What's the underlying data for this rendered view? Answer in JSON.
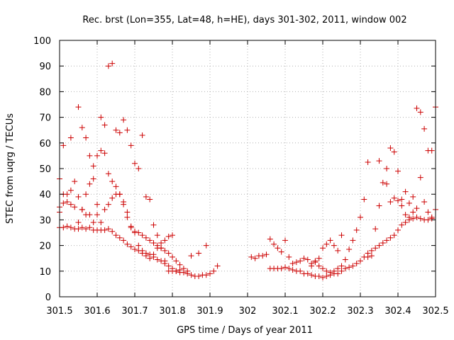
{
  "chart_data": {
    "type": "scatter",
    "title": "Rec. brst (Lon=355, Lat=48, h=HE), days 301-302, 2011, window 002",
    "xlabel": "GPS time / Days of year 2011",
    "ylabel": "STEC from uqrg / TECUs",
    "xlim": [
      301.5,
      302.5
    ],
    "ylim": [
      0,
      100
    ],
    "x_ticks": [
      "301.5",
      "301.6",
      "301.7",
      "301.8",
      "301.9",
      "302",
      "302.1",
      "302.2",
      "302.3",
      "302.4",
      "302.5"
    ],
    "y_ticks": [
      "0",
      "10",
      "20",
      "30",
      "40",
      "50",
      "60",
      "70",
      "80",
      "90",
      "100"
    ],
    "grid": true,
    "marker": "+",
    "colors": {
      "points": "#cc0000",
      "grid": "#b0b0b0",
      "axis": "#000000"
    },
    "series": [
      {
        "points": [
          [
            301.5,
            27
          ],
          [
            301.51,
            27
          ],
          [
            301.52,
            27.5
          ],
          [
            301.53,
            27
          ],
          [
            301.54,
            26.5
          ],
          [
            301.55,
            26.5
          ],
          [
            301.56,
            27
          ],
          [
            301.57,
            26.5
          ],
          [
            301.58,
            27
          ],
          [
            301.59,
            26
          ],
          [
            301.6,
            26
          ],
          [
            301.61,
            26
          ],
          [
            301.62,
            26
          ],
          [
            301.63,
            26.5
          ],
          [
            301.64,
            25.5
          ],
          [
            301.65,
            24
          ],
          [
            301.66,
            23
          ],
          [
            301.67,
            22
          ],
          [
            301.68,
            20.5
          ],
          [
            301.69,
            19.5
          ],
          [
            301.7,
            18.5
          ],
          [
            301.71,
            18
          ],
          [
            301.72,
            17
          ],
          [
            301.73,
            17
          ],
          [
            301.74,
            16.5
          ],
          [
            301.75,
            15.5
          ],
          [
            301.76,
            14.5
          ],
          [
            301.77,
            14
          ],
          [
            301.78,
            13
          ],
          [
            301.79,
            12
          ],
          [
            301.8,
            11
          ],
          [
            301.81,
            10
          ],
          [
            301.82,
            9.5
          ],
          [
            301.83,
            9.5
          ],
          [
            301.84,
            9
          ],
          [
            301.85,
            8.5
          ],
          [
            301.86,
            8
          ],
          [
            301.87,
            8
          ],
          [
            301.88,
            8.5
          ],
          [
            301.89,
            8.5
          ],
          [
            301.9,
            9
          ],
          [
            301.91,
            10
          ],
          [
            301.92,
            12
          ],
          [
            301.5,
            33
          ],
          [
            301.51,
            36.5
          ],
          [
            301.52,
            40
          ],
          [
            301.53,
            41.5
          ],
          [
            301.54,
            45
          ],
          [
            301.55,
            39
          ],
          [
            301.56,
            34
          ],
          [
            301.57,
            32
          ],
          [
            301.58,
            32
          ],
          [
            301.59,
            29
          ],
          [
            301.6,
            32
          ],
          [
            301.61,
            29
          ],
          [
            301.62,
            34
          ],
          [
            301.63,
            36
          ],
          [
            301.64,
            38.5
          ],
          [
            301.65,
            40
          ],
          [
            301.66,
            40
          ],
          [
            301.67,
            37
          ],
          [
            301.68,
            33
          ],
          [
            301.69,
            27.5
          ],
          [
            301.7,
            25.5
          ],
          [
            301.71,
            25
          ],
          [
            301.72,
            24
          ],
          [
            301.73,
            23
          ],
          [
            301.74,
            22
          ],
          [
            301.75,
            21
          ],
          [
            301.76,
            20
          ],
          [
            301.77,
            19
          ],
          [
            301.78,
            18
          ],
          [
            301.79,
            17
          ],
          [
            301.8,
            15.5
          ],
          [
            301.81,
            14
          ],
          [
            301.82,
            12.5
          ],
          [
            301.83,
            11
          ],
          [
            301.84,
            10
          ],
          [
            301.5,
            46
          ],
          [
            301.51,
            40
          ],
          [
            301.52,
            37
          ],
          [
            301.53,
            36
          ],
          [
            301.54,
            35
          ],
          [
            301.55,
            29
          ],
          [
            301.56,
            34
          ],
          [
            301.57,
            40
          ],
          [
            301.58,
            44
          ],
          [
            301.59,
            51
          ],
          [
            301.6,
            55
          ],
          [
            301.61,
            57
          ],
          [
            301.62,
            56
          ],
          [
            301.63,
            48
          ],
          [
            301.64,
            45
          ],
          [
            301.65,
            43
          ],
          [
            301.66,
            40
          ],
          [
            301.67,
            36
          ],
          [
            301.68,
            31
          ],
          [
            301.69,
            27
          ],
          [
            301.7,
            25
          ],
          [
            301.71,
            20
          ],
          [
            301.72,
            18
          ],
          [
            301.73,
            16
          ],
          [
            301.74,
            15
          ],
          [
            301.75,
            16.5
          ],
          [
            301.76,
            19
          ],
          [
            301.77,
            21
          ],
          [
            301.78,
            22
          ],
          [
            301.79,
            23.5
          ],
          [
            301.8,
            24
          ],
          [
            301.85,
            16
          ],
          [
            301.87,
            17
          ],
          [
            301.89,
            20
          ],
          [
            301.5,
            35
          ],
          [
            301.51,
            59
          ],
          [
            301.53,
            62
          ],
          [
            301.55,
            74
          ],
          [
            301.56,
            66
          ],
          [
            301.57,
            62
          ],
          [
            301.58,
            55
          ],
          [
            301.59,
            46
          ],
          [
            301.6,
            36
          ],
          [
            301.61,
            70
          ],
          [
            301.62,
            67
          ],
          [
            301.63,
            90
          ],
          [
            301.64,
            91
          ],
          [
            301.65,
            65
          ],
          [
            301.66,
            64
          ],
          [
            301.67,
            69
          ],
          [
            301.68,
            65
          ],
          [
            301.69,
            59
          ],
          [
            301.7,
            52
          ],
          [
            301.71,
            50
          ],
          [
            301.72,
            63
          ],
          [
            301.73,
            39
          ],
          [
            301.74,
            38
          ],
          [
            301.75,
            28
          ],
          [
            301.76,
            24
          ],
          [
            301.77,
            19
          ],
          [
            301.78,
            14
          ],
          [
            301.79,
            10
          ],
          [
            301.8,
            10
          ],
          [
            301.81,
            10
          ],
          [
            301.82,
            10.5
          ],
          [
            302.01,
            15.5
          ],
          [
            302.02,
            15
          ],
          [
            302.03,
            16
          ],
          [
            302.04,
            16
          ],
          [
            302.05,
            16.5
          ],
          [
            302.06,
            22.5
          ],
          [
            302.07,
            20.5
          ],
          [
            302.08,
            19
          ],
          [
            302.09,
            17.5
          ],
          [
            302.1,
            22
          ],
          [
            302.11,
            15.5
          ],
          [
            302.12,
            13
          ],
          [
            302.13,
            13.5
          ],
          [
            302.14,
            14
          ],
          [
            302.15,
            15
          ],
          [
            302.16,
            14.5
          ],
          [
            302.17,
            12
          ],
          [
            302.18,
            14
          ],
          [
            302.19,
            15
          ],
          [
            302.2,
            19
          ],
          [
            302.21,
            20.5
          ],
          [
            302.22,
            22
          ],
          [
            302.23,
            20
          ],
          [
            302.24,
            18
          ],
          [
            302.25,
            24
          ],
          [
            302.06,
            11
          ],
          [
            302.07,
            11
          ],
          [
            302.08,
            11
          ],
          [
            302.09,
            11
          ],
          [
            302.1,
            11.5
          ],
          [
            302.11,
            11
          ],
          [
            302.12,
            10.5
          ],
          [
            302.13,
            10
          ],
          [
            302.14,
            10
          ],
          [
            302.15,
            9
          ],
          [
            302.16,
            9
          ],
          [
            302.17,
            8.5
          ],
          [
            302.18,
            8
          ],
          [
            302.19,
            8
          ],
          [
            302.2,
            7.5
          ],
          [
            302.21,
            8
          ],
          [
            302.22,
            8.5
          ],
          [
            302.23,
            9
          ],
          [
            302.24,
            9
          ],
          [
            302.25,
            10
          ],
          [
            302.26,
            11
          ],
          [
            302.27,
            11.5
          ],
          [
            302.28,
            12
          ],
          [
            302.29,
            13
          ],
          [
            302.3,
            14
          ],
          [
            302.31,
            15.5
          ],
          [
            302.32,
            17
          ],
          [
            302.33,
            18
          ],
          [
            302.34,
            19
          ],
          [
            302.35,
            20
          ],
          [
            302.36,
            21
          ],
          [
            302.37,
            22
          ],
          [
            302.38,
            23
          ],
          [
            302.39,
            24
          ],
          [
            302.4,
            26
          ],
          [
            302.41,
            28
          ],
          [
            302.42,
            29
          ],
          [
            302.43,
            30
          ],
          [
            302.44,
            30.5
          ],
          [
            302.45,
            31
          ],
          [
            302.46,
            30.5
          ],
          [
            302.47,
            30
          ],
          [
            302.48,
            30
          ],
          [
            302.49,
            30.5
          ],
          [
            302.17,
            13
          ],
          [
            302.18,
            13.5
          ],
          [
            302.19,
            12
          ],
          [
            302.2,
            11
          ],
          [
            302.21,
            10
          ],
          [
            302.22,
            9.5
          ],
          [
            302.23,
            10
          ],
          [
            302.24,
            11
          ],
          [
            302.25,
            12
          ],
          [
            302.26,
            14.5
          ],
          [
            302.27,
            18.5
          ],
          [
            302.28,
            22
          ],
          [
            302.29,
            26
          ],
          [
            302.3,
            31
          ],
          [
            302.31,
            38
          ],
          [
            302.32,
            15.5
          ],
          [
            302.33,
            16
          ],
          [
            302.34,
            26.5
          ],
          [
            302.35,
            35.5
          ],
          [
            302.36,
            44.5
          ],
          [
            302.37,
            44
          ],
          [
            302.38,
            37
          ],
          [
            302.39,
            38.5
          ],
          [
            302.4,
            37.5
          ],
          [
            302.41,
            35.5
          ],
          [
            302.42,
            41
          ],
          [
            302.43,
            36.5
          ],
          [
            302.44,
            33
          ],
          [
            302.45,
            34.5
          ],
          [
            302.46,
            46.5
          ],
          [
            302.47,
            37
          ],
          [
            302.48,
            33
          ],
          [
            302.49,
            31
          ],
          [
            302.5,
            34
          ],
          [
            302.32,
            52.5
          ],
          [
            302.35,
            53
          ],
          [
            302.37,
            50
          ],
          [
            302.38,
            58
          ],
          [
            302.39,
            56.5
          ],
          [
            302.4,
            49
          ],
          [
            302.41,
            38
          ],
          [
            302.42,
            32
          ],
          [
            302.43,
            31
          ],
          [
            302.44,
            39
          ],
          [
            302.45,
            73.5
          ],
          [
            302.46,
            72
          ],
          [
            302.47,
            65.5
          ],
          [
            302.48,
            57
          ],
          [
            302.49,
            57
          ],
          [
            302.5,
            74
          ]
        ]
      }
    ]
  }
}
